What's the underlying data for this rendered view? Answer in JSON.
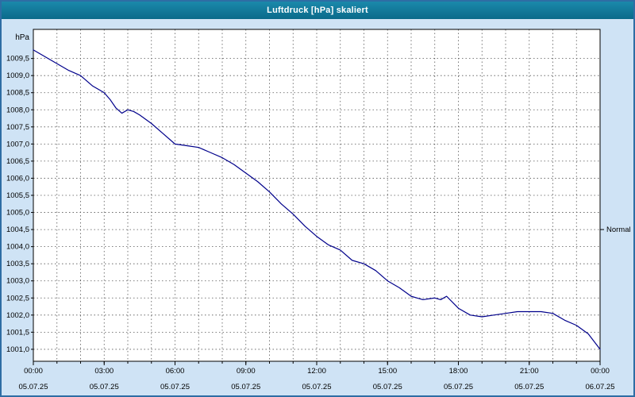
{
  "window": {
    "title": "Luftdruck [hPa] skaliert"
  },
  "colors": {
    "titlebar_bg": "#0d7a9c",
    "titlebar_text": "#ffffff",
    "window_bg": "#cfe3f5",
    "window_border": "#2e6da4",
    "plot_bg": "#ffffff",
    "grid": "#555555",
    "axis": "#000000",
    "line": "#00008b",
    "text": "#000000"
  },
  "chart_data": {
    "type": "line",
    "title": "Luftdruck [hPa] skaliert",
    "unit_label": "hPa",
    "normal_label": "Normal",
    "normal_value": 1004.5,
    "ylim": [
      1000.65,
      1010.35
    ],
    "xlim": [
      0,
      24
    ],
    "grid": true,
    "yticks": [
      {
        "value": 1009.5,
        "label": "1009,5"
      },
      {
        "value": 1009.0,
        "label": "1009,0"
      },
      {
        "value": 1008.5,
        "label": "1008,5"
      },
      {
        "value": 1008.0,
        "label": "1008,0"
      },
      {
        "value": 1007.5,
        "label": "1007,5"
      },
      {
        "value": 1007.0,
        "label": "1007,0"
      },
      {
        "value": 1006.5,
        "label": "1006,5"
      },
      {
        "value": 1006.0,
        "label": "1006,0"
      },
      {
        "value": 1005.5,
        "label": "1005,5"
      },
      {
        "value": 1005.0,
        "label": "1005,0"
      },
      {
        "value": 1004.5,
        "label": "1004,5"
      },
      {
        "value": 1004.0,
        "label": "1004,0"
      },
      {
        "value": 1003.5,
        "label": "1003,5"
      },
      {
        "value": 1003.0,
        "label": "1003,0"
      },
      {
        "value": 1002.5,
        "label": "1002,5"
      },
      {
        "value": 1002.0,
        "label": "1002,0"
      },
      {
        "value": 1001.5,
        "label": "1001,5"
      },
      {
        "value": 1001.0,
        "label": "1001,0"
      }
    ],
    "xticks": [
      {
        "hour": 0,
        "time": "00:00",
        "date": "05.07.25"
      },
      {
        "hour": 3,
        "time": "03:00",
        "date": "05.07.25"
      },
      {
        "hour": 6,
        "time": "06:00",
        "date": "05.07.25"
      },
      {
        "hour": 9,
        "time": "09:00",
        "date": "05.07.25"
      },
      {
        "hour": 12,
        "time": "12:00",
        "date": "05.07.25"
      },
      {
        "hour": 15,
        "time": "15:00",
        "date": "05.07.25"
      },
      {
        "hour": 18,
        "time": "18:00",
        "date": "05.07.25"
      },
      {
        "hour": 21,
        "time": "21:00",
        "date": "05.07.25"
      },
      {
        "hour": 24,
        "time": "00:00",
        "date": "06.07.25"
      }
    ],
    "grid_hour_step": 1,
    "series": [
      {
        "name": "Luftdruck",
        "x": [
          0,
          0.5,
          1,
          1.5,
          2,
          2.5,
          3,
          3.25,
          3.5,
          3.75,
          4,
          4.25,
          4.5,
          5,
          5.5,
          6,
          6.5,
          7,
          7.5,
          8,
          8.5,
          9,
          9.5,
          10,
          10.5,
          11,
          11.5,
          12,
          12.5,
          13,
          13.5,
          14,
          14.5,
          15,
          15.5,
          16,
          16.25,
          16.5,
          17,
          17.25,
          17.5,
          18,
          18.5,
          19,
          19.5,
          20,
          20.5,
          21,
          21.5,
          22,
          22.5,
          23,
          23.5,
          24
        ],
        "y": [
          1009.75,
          1009.55,
          1009.35,
          1009.15,
          1009.0,
          1008.7,
          1008.5,
          1008.3,
          1008.05,
          1007.9,
          1008.0,
          1007.95,
          1007.85,
          1007.6,
          1007.3,
          1007.0,
          1006.95,
          1006.9,
          1006.75,
          1006.6,
          1006.4,
          1006.15,
          1005.9,
          1005.6,
          1005.25,
          1004.95,
          1004.6,
          1004.3,
          1004.05,
          1003.9,
          1003.6,
          1003.5,
          1003.3,
          1003.0,
          1002.8,
          1002.55,
          1002.5,
          1002.45,
          1002.5,
          1002.45,
          1002.55,
          1002.2,
          1002.0,
          1001.95,
          1002.0,
          1002.05,
          1002.1,
          1002.1,
          1002.1,
          1002.05,
          1001.85,
          1001.7,
          1001.45,
          1001.0
        ]
      }
    ]
  }
}
